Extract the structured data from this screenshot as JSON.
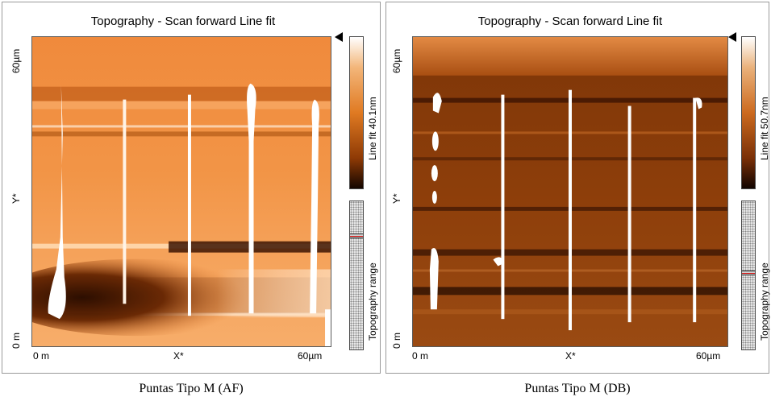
{
  "panels": [
    {
      "title": "Topography - Scan forward    Line fit",
      "y_top": "60µm",
      "y_mid": "Y*",
      "y_bottom": "0 m",
      "x_left": "0 m",
      "x_mid": "X*",
      "x_right": "60µm",
      "colorbar_label": "Line fit 40.1nm",
      "range_label": "Topography range",
      "caption": "Puntas Tipo M (AF)",
      "colormap": "orange-copper"
    },
    {
      "title": "Topography - Scan forward    Line fit",
      "y_top": "60µm",
      "y_mid": "Y*",
      "y_bottom": "0 m",
      "x_left": "0 m",
      "x_mid": "X*",
      "x_right": "60µm",
      "colorbar_label": "Line fit 50.7nm",
      "range_label": "Topography range",
      "caption": "Puntas Tipo M (DB)",
      "colormap": "dark-copper"
    }
  ]
}
